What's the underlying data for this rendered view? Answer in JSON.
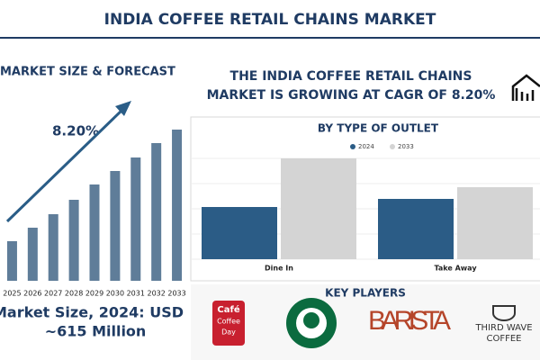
{
  "header": {
    "title": "INDIA COFFEE RETAIL CHAINS MARKET"
  },
  "forecast": {
    "market_size": "Market Size, 2024: USD",
    "market_value": "~615 Million"
  },
  "headline": [
    "THE INDIA COFFEE RETAIL CHAINS",
    "MARKET IS GROWING AT CAGR OF 8.20%"
  ],
  "key_players": {
    "title": "KEY PLAYERS",
    "logos": [
      {
        "lines": [
          "Café",
          "Coffee",
          "Day"
        ]
      },
      {
        "lines": [
          "BARISTA"
        ]
      },
      {
        "lines": [
          "THIRD WAVE",
          "COFFEE"
        ]
      }
    ]
  },
  "chart_data": [
    {
      "type": "bar",
      "title": "MARKET SIZE & FORECAST",
      "annotation": "8.20%",
      "categories": [
        "2025",
        "2026",
        "2027",
        "2028",
        "2029",
        "2030",
        "2031",
        "2032",
        "2033"
      ],
      "values": [
        44,
        59,
        74,
        90,
        107,
        122,
        137,
        153,
        168
      ],
      "color": "#5f7d99"
    },
    {
      "type": "bar",
      "title": "BY TYPE OF OUTLET",
      "categories": [
        "Dine In",
        "Take Away"
      ],
      "series": [
        {
          "name": "2024",
          "color": "#2b5c86",
          "values": [
            58,
            67
          ]
        },
        {
          "name": "2033",
          "color": "#d4d4d4",
          "values": [
            112,
            80
          ]
        }
      ]
    }
  ]
}
